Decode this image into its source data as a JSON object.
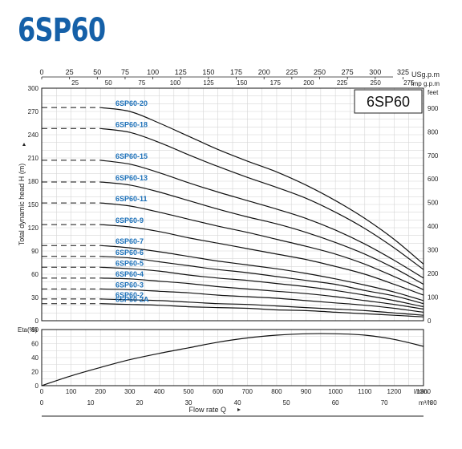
{
  "title": "6SP60",
  "brand_color": "#1560a8",
  "label_color": "#1a6fb8",
  "model_box": "6SP60",
  "top_axis": {
    "usgpm_unit": "USg.p.m",
    "usgpm_ticks": [
      "0",
      "25",
      "50",
      "75",
      "100",
      "125",
      "150",
      "175",
      "200",
      "225",
      "250",
      "275",
      "300",
      "325"
    ],
    "imp_unit": "Imp  g.p.m",
    "imp_ticks": [
      "25",
      "50",
      "75",
      "100",
      "125",
      "150",
      "175",
      "200",
      "225",
      "250",
      "275"
    ]
  },
  "head_axis": {
    "label": "Total dynamic head H (m)",
    "ticks": [
      "0",
      "30",
      "60",
      "90",
      "120",
      "150",
      "180",
      "210",
      "240",
      "270",
      "300"
    ],
    "feet_unit": "feet",
    "feet_ticks": [
      "0",
      "100",
      "200",
      "300",
      "400",
      "500",
      "600",
      "700",
      "800",
      "900"
    ]
  },
  "eff_axis": {
    "label": "Eta(%)",
    "ticks": [
      "0",
      "20",
      "40",
      "60",
      "80"
    ]
  },
  "bottom_axis": {
    "lmin_unit": "l/min",
    "lmin_ticks": [
      "0",
      "100",
      "200",
      "300",
      "400",
      "500",
      "600",
      "700",
      "800",
      "900",
      "1000",
      "1100",
      "1200",
      "1300"
    ],
    "m3h_unit": "m³/h",
    "m3h_ticks": [
      "0",
      "10",
      "20",
      "30",
      "40",
      "50",
      "60",
      "70",
      "80"
    ],
    "label": "Flow rate Q"
  },
  "chart_data": [
    {
      "type": "line",
      "title": "6SP60",
      "xlabel": "Flow rate Q (l/min)",
      "ylabel": "Total dynamic head H (m)",
      "xlim": [
        0,
        1300
      ],
      "ylim": [
        0,
        300
      ],
      "grid": true,
      "dashed_segment_x": [
        0,
        200
      ],
      "series": [
        {
          "name": "6SP60-20",
          "x": [
            200,
            300,
            400,
            500,
            600,
            700,
            800,
            900,
            1000,
            1100,
            1200,
            1300
          ],
          "y": [
            275,
            270,
            255,
            238,
            221,
            206,
            192,
            175,
            155,
            132,
            105,
            73
          ]
        },
        {
          "name": "6SP60-18",
          "x": [
            200,
            300,
            400,
            500,
            600,
            700,
            800,
            900,
            1000,
            1100,
            1200,
            1300
          ],
          "y": [
            248,
            243,
            230,
            214,
            199,
            185,
            172,
            158,
            140,
            119,
            94,
            66
          ]
        },
        {
          "name": "6SP60-15",
          "x": [
            200,
            300,
            400,
            500,
            600,
            700,
            800,
            900,
            1000,
            1100,
            1200,
            1300
          ],
          "y": [
            207,
            202,
            191,
            178,
            166,
            155,
            144,
            132,
            117,
            99,
            78,
            55
          ]
        },
        {
          "name": "6SP60-13",
          "x": [
            200,
            300,
            400,
            500,
            600,
            700,
            800,
            900,
            1000,
            1100,
            1200,
            1300
          ],
          "y": [
            179,
            175,
            166,
            155,
            144,
            134,
            125,
            114,
            101,
            86,
            68,
            47
          ]
        },
        {
          "name": "6SP60-11",
          "x": [
            200,
            300,
            400,
            500,
            600,
            700,
            800,
            900,
            1000,
            1100,
            1200,
            1300
          ],
          "y": [
            152,
            148,
            140,
            131,
            122,
            114,
            105,
            96,
            86,
            73,
            57,
            40
          ]
        },
        {
          "name": "6SP60-9",
          "x": [
            200,
            300,
            400,
            500,
            600,
            700,
            800,
            900,
            1000,
            1100,
            1200,
            1300
          ],
          "y": [
            124,
            121,
            115,
            107,
            100,
            93,
            86,
            79,
            70,
            60,
            47,
            33
          ]
        },
        {
          "name": "6SP60-7",
          "x": [
            200,
            300,
            400,
            500,
            600,
            700,
            800,
            900,
            1000,
            1100,
            1200,
            1300
          ],
          "y": [
            97,
            94,
            89,
            83,
            77,
            72,
            67,
            61,
            54,
            46,
            37,
            26
          ]
        },
        {
          "name": "6SP60-6",
          "x": [
            200,
            300,
            400,
            500,
            600,
            700,
            800,
            900,
            1000,
            1100,
            1200,
            1300
          ],
          "y": [
            83,
            81,
            76,
            71,
            66,
            62,
            57,
            52,
            47,
            39,
            32,
            22
          ]
        },
        {
          "name": "6SP60-5",
          "x": [
            200,
            300,
            400,
            500,
            600,
            700,
            800,
            900,
            1000,
            1100,
            1200,
            1300
          ],
          "y": [
            69,
            67,
            64,
            59,
            55,
            52,
            48,
            44,
            39,
            33,
            26,
            18
          ]
        },
        {
          "name": "6SP60-4",
          "x": [
            200,
            300,
            400,
            500,
            600,
            700,
            800,
            900,
            1000,
            1100,
            1200,
            1300
          ],
          "y": [
            55,
            54,
            51,
            48,
            44,
            41,
            38,
            35,
            31,
            26,
            21,
            15
          ]
        },
        {
          "name": "6SP60-3",
          "x": [
            200,
            300,
            400,
            500,
            600,
            700,
            800,
            900,
            1000,
            1100,
            1200,
            1300
          ],
          "y": [
            41,
            40,
            38,
            36,
            33,
            31,
            29,
            26,
            23,
            20,
            16,
            11
          ]
        },
        {
          "name": "6SP60-2",
          "x": [
            200,
            300,
            400,
            500,
            600,
            700,
            800,
            900,
            1000,
            1100,
            1200,
            1300
          ],
          "y": [
            28,
            27,
            26,
            24,
            22,
            21,
            19,
            17,
            15,
            13,
            10,
            7
          ]
        },
        {
          "name": "6SP60-2A",
          "x": [
            200,
            300,
            400,
            500,
            600,
            700,
            800,
            900,
            1000,
            1100,
            1200,
            1300
          ],
          "y": [
            22,
            21,
            20,
            18,
            17,
            16,
            14,
            13,
            11,
            9,
            7,
            5
          ]
        }
      ]
    },
    {
      "type": "line",
      "ylabel": "Eta(%)",
      "xlabel": "Flow rate Q (l/min)",
      "xlim": [
        0,
        1300
      ],
      "ylim": [
        0,
        80
      ],
      "grid": true,
      "series": [
        {
          "name": "",
          "x": [
            0,
            100,
            200,
            300,
            400,
            500,
            600,
            700,
            800,
            900,
            1000,
            1100,
            1200,
            1300
          ],
          "y": [
            0,
            14,
            26,
            37,
            46,
            54,
            62,
            68,
            72,
            74,
            74,
            72,
            66,
            56
          ]
        }
      ]
    }
  ]
}
